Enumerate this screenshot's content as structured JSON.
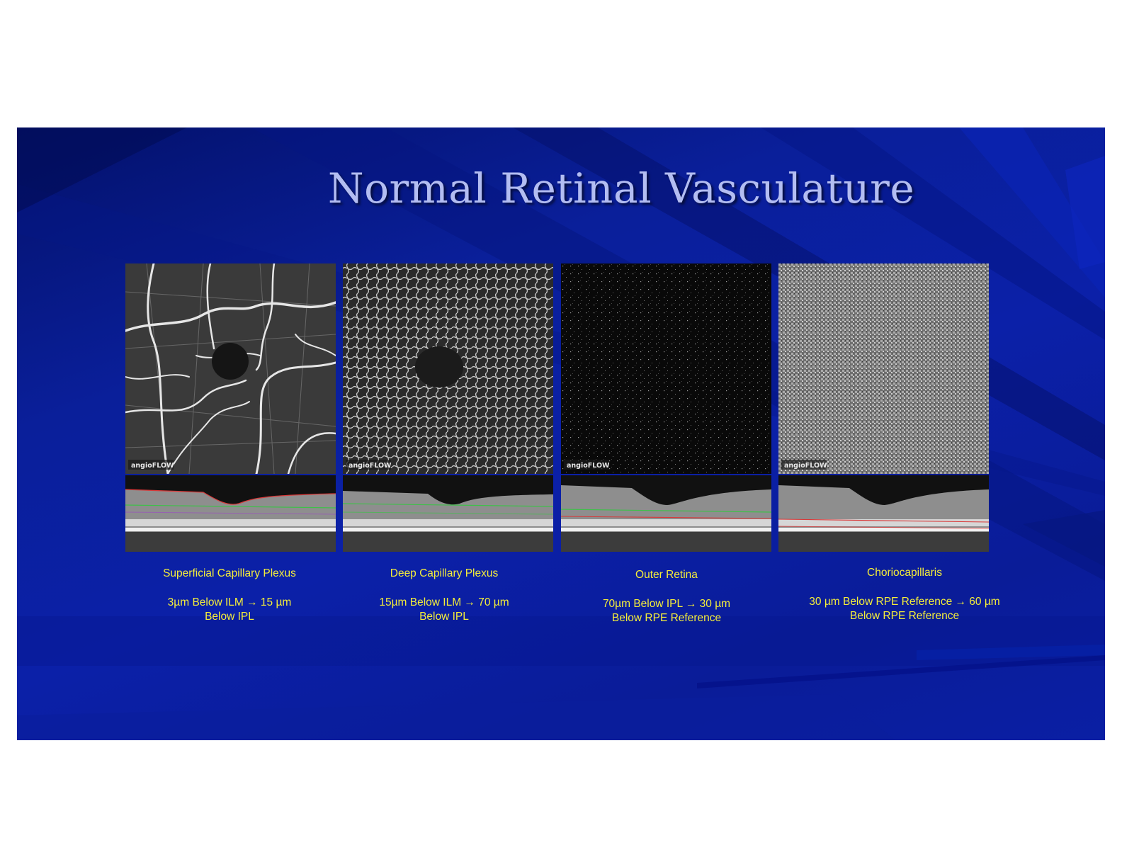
{
  "slide": {
    "title": "Normal Retinal Vasculature",
    "panels": [
      {
        "watermark": "angioFLOW",
        "caption_title": "Superficial Capillary Plexus",
        "caption_depth_line1": "3µm Below ILM →  15 µm",
        "caption_depth_line2": "Below IPL"
      },
      {
        "watermark": "angioFLOW",
        "caption_title": "Deep Capillary Plexus",
        "caption_depth_line1": "15µm Below ILM →  70 µm",
        "caption_depth_line2": "Below IPL"
      },
      {
        "watermark": "angioFLOW",
        "caption_title": "Outer Retina",
        "caption_depth_line1": "70µm Below IPL →  30 µm",
        "caption_depth_line2": "Below RPE Reference"
      },
      {
        "watermark": "angioFLOW",
        "caption_title": "Choriocapillaris",
        "caption_depth_line1": "30 µm Below RPE Reference → 60 µm",
        "caption_depth_line2": "Below RPE Reference"
      }
    ]
  },
  "colors": {
    "title_text": "#b3bdf2",
    "caption_text": "#f5ee3a",
    "background_blue": "#0b20a8"
  }
}
